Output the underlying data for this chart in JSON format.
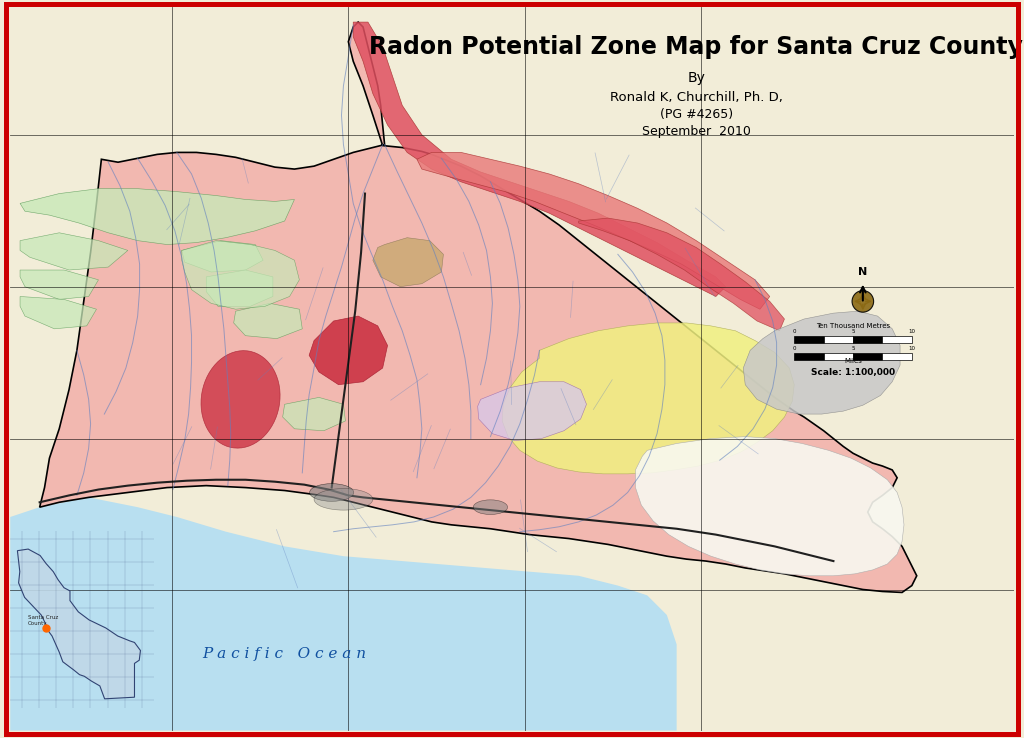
{
  "title": "Radon Potential Zone Map for Santa Cruz County",
  "subtitle_line1": "By",
  "subtitle_line2": "Ronald K, Churchill, Ph. D,",
  "subtitle_line3": "(PG #4265)",
  "subtitle_line4": "September  2010",
  "scale_text": "Scale: 1:100,000",
  "pacific_ocean_label": "P a c i f i c   O c e a n",
  "bg_color": "#F2EDD8",
  "ocean_color": "#B8DFF0",
  "border_color": "#CC0000",
  "county_pink": "#F2B8B0",
  "county_light_pink": "#F5CEC8",
  "high_radon_red": "#E05060",
  "high_radon_stripe": "#E87878",
  "yellow_zone": "#F0F080",
  "green_zone": "#A8D898",
  "light_green": "#C8E8B8",
  "dark_green": "#88C888",
  "gray_zone": "#C8C8C8",
  "light_gray": "#E0E0E0",
  "white_zone": "#F8F8F0",
  "purple_zone": "#D8C8E8",
  "brown_zone": "#C8A870",
  "dark_brown": "#8B6914",
  "river_color": "#6080C0",
  "road_color": "#202020",
  "urban_color": "#808080"
}
